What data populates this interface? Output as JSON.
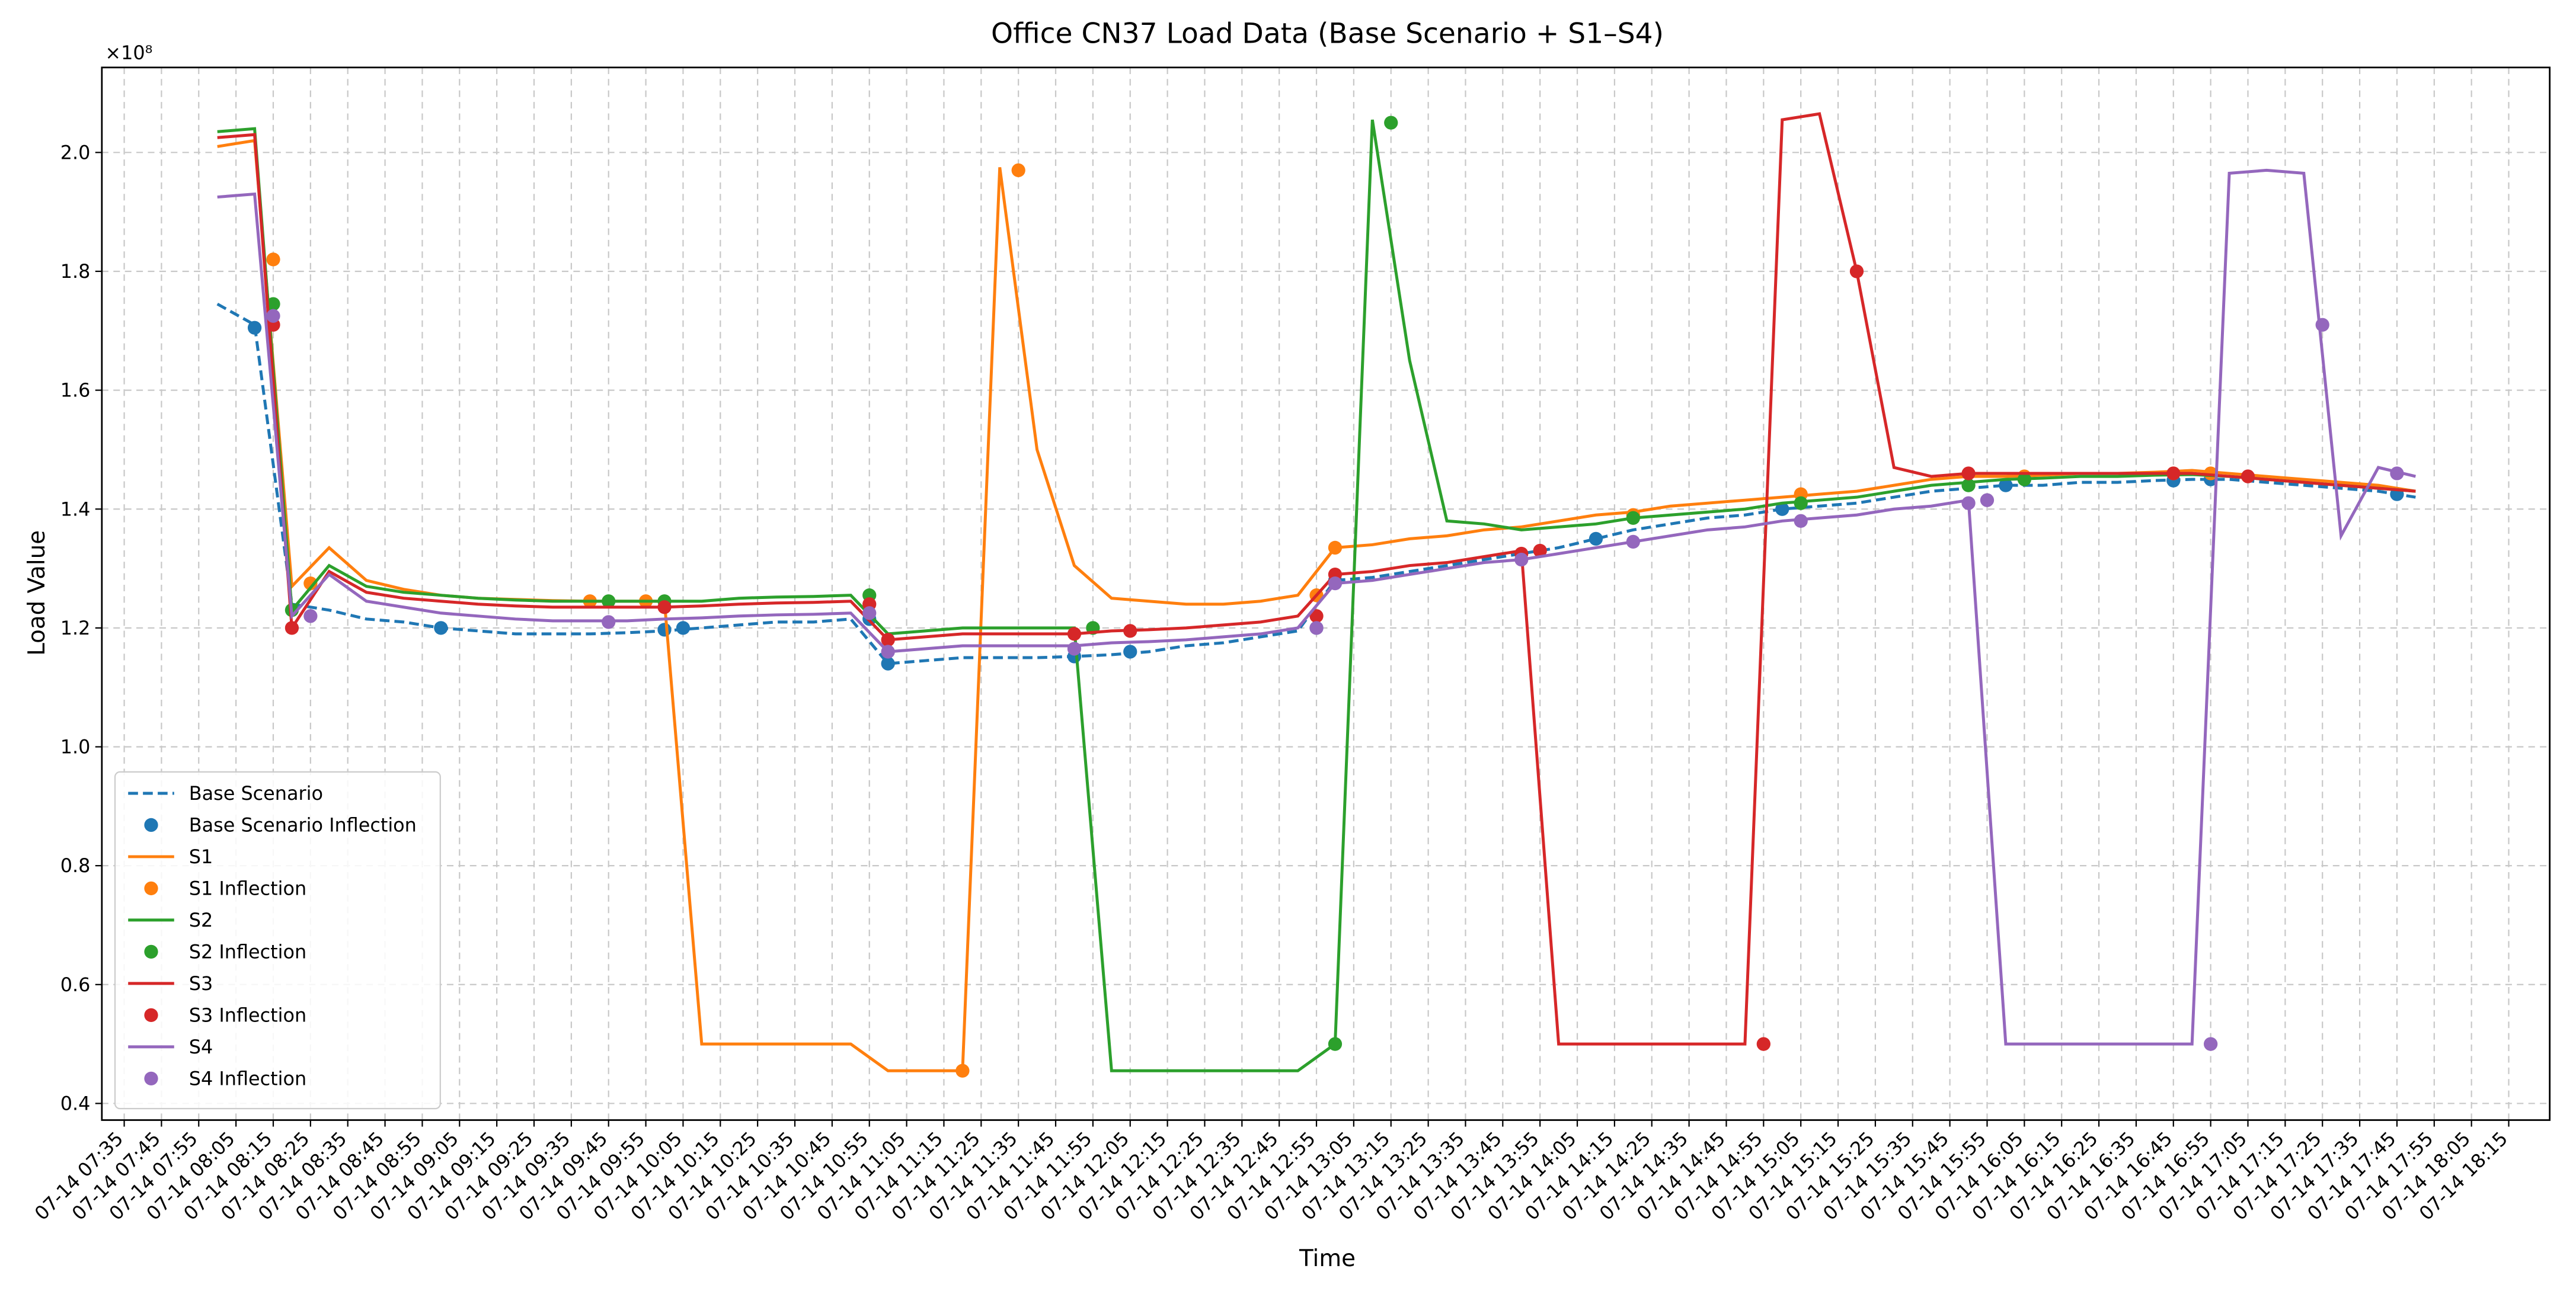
{
  "chart_data": {
    "type": "line",
    "title": "Office CN37 Load Data (Base Scenario + S1–S4)",
    "x_label": "Time",
    "y_label": "Load Value",
    "y_offset_label": "×10⁸",
    "grid": true,
    "legend": "lower left",
    "xlim": [
      "07-14 07:29",
      "07-14 18:26"
    ],
    "ylim": [
      0.372,
      2.143
    ],
    "yticks": [
      0.4,
      0.6,
      0.8,
      {
        "value": 1,
        "label": "1.0"
      },
      1.2,
      1.4,
      1.6,
      1.8,
      {
        "value": 2,
        "label": "2.0"
      }
    ],
    "xticks": [
      "07-14 07:35",
      "07-14 07:45",
      "07-14 07:55",
      "07-14 08:05",
      "07-14 08:15",
      "07-14 08:25",
      "07-14 08:35",
      "07-14 08:45",
      "07-14 08:55",
      "07-14 09:05",
      "07-14 09:15",
      "07-14 09:25",
      "07-14 09:35",
      "07-14 09:45",
      "07-14 09:55",
      "07-14 10:05",
      "07-14 10:15",
      "07-14 10:25",
      "07-14 10:35",
      "07-14 10:45",
      "07-14 10:55",
      "07-14 11:05",
      "07-14 11:15",
      "07-14 11:25",
      "07-14 11:35",
      "07-14 11:45",
      "07-14 11:55",
      "07-14 12:05",
      "07-14 12:15",
      "07-14 12:25",
      "07-14 12:35",
      "07-14 12:45",
      "07-14 12:55",
      "07-14 13:05",
      "07-14 13:15",
      "07-14 13:25",
      "07-14 13:35",
      "07-14 13:45",
      "07-14 13:55",
      "07-14 14:05",
      "07-14 14:15",
      "07-14 14:25",
      "07-14 14:35",
      "07-14 14:45",
      "07-14 14:55",
      "07-14 15:05",
      "07-14 15:15",
      "07-14 15:25",
      "07-14 15:35",
      "07-14 15:45",
      "07-14 15:55",
      "07-14 16:05",
      "07-14 16:15",
      "07-14 16:25",
      "07-14 16:35",
      "07-14 16:45",
      "07-14 16:55",
      "07-14 17:05",
      "07-14 17:15",
      "07-14 17:25",
      "07-14 17:35",
      "07-14 17:45",
      "07-14 17:55",
      "07-14 18:05",
      "07-14 18:15"
    ],
    "x": [
      "07-14 08:00",
      "07-14 08:10",
      "07-14 08:20",
      "07-14 08:30",
      "07-14 08:40",
      "07-14 08:50",
      "07-14 09:00",
      "07-14 09:10",
      "07-14 09:20",
      "07-14 09:30",
      "07-14 09:40",
      "07-14 09:50",
      "07-14 10:00",
      "07-14 10:10",
      "07-14 10:20",
      "07-14 10:30",
      "07-14 10:40",
      "07-14 10:50",
      "07-14 11:00",
      "07-14 11:10",
      "07-14 11:20",
      "07-14 11:30",
      "07-14 11:40",
      "07-14 11:50",
      "07-14 12:00",
      "07-14 12:10",
      "07-14 12:20",
      "07-14 12:30",
      "07-14 12:40",
      "07-14 12:50",
      "07-14 13:00",
      "07-14 13:10",
      "07-14 13:20",
      "07-14 13:30",
      "07-14 13:40",
      "07-14 13:50",
      "07-14 14:00",
      "07-14 14:10",
      "07-14 14:20",
      "07-14 14:30",
      "07-14 14:40",
      "07-14 14:50",
      "07-14 15:00",
      "07-14 15:10",
      "07-14 15:20",
      "07-14 15:30",
      "07-14 15:40",
      "07-14 15:50",
      "07-14 16:00",
      "07-14 16:10",
      "07-14 16:20",
      "07-14 16:30",
      "07-14 16:40",
      "07-14 16:50",
      "07-14 17:00",
      "07-14 17:10",
      "07-14 17:20",
      "07-14 17:30",
      "07-14 17:40",
      "07-14 17:50"
    ],
    "series": [
      {
        "name": "Base Scenario",
        "color": "#1f77b4",
        "style": "dashed",
        "values": [
          1.745,
          1.71,
          1.24,
          1.23,
          1.215,
          1.21,
          1.2,
          1.195,
          1.19,
          1.19,
          1.19,
          1.192,
          1.195,
          1.2,
          1.205,
          1.21,
          1.21,
          1.215,
          1.14,
          1.145,
          1.15,
          1.15,
          1.15,
          1.152,
          1.155,
          1.16,
          1.17,
          1.175,
          1.185,
          1.195,
          1.28,
          1.285,
          1.295,
          1.305,
          1.315,
          1.325,
          1.335,
          1.35,
          1.365,
          1.375,
          1.385,
          1.39,
          1.4,
          1.405,
          1.41,
          1.42,
          1.43,
          1.435,
          1.44,
          1.44,
          1.445,
          1.445,
          1.448,
          1.45,
          1.45,
          1.445,
          1.44,
          1.435,
          1.43,
          1.42
        ]
      },
      {
        "name": "Base Scenario Inflection",
        "color": "#1f77b4",
        "kind": "scatter",
        "x": [
          "07-14 08:10",
          "07-14 09:00",
          "07-14 10:00",
          "07-14 10:05",
          "07-14 10:55",
          "07-14 11:00",
          "07-14 11:50",
          "07-14 12:05",
          "07-14 12:55",
          "07-14 13:00",
          "07-14 14:10",
          "07-14 15:00",
          "07-14 16:00",
          "07-14 16:45",
          "07-14 16:55",
          "07-14 17:45"
        ],
        "values": [
          1.705,
          1.2,
          1.197,
          1.2,
          1.215,
          1.14,
          1.152,
          1.16,
          1.2,
          1.28,
          1.35,
          1.4,
          1.44,
          1.448,
          1.45,
          1.425
        ]
      },
      {
        "name": "S1",
        "color": "#ff7f0e",
        "style": "solid",
        "values": [
          2.01,
          2.02,
          1.27,
          1.335,
          1.28,
          1.265,
          1.255,
          1.25,
          1.248,
          1.246,
          1.245,
          1.245,
          1.245,
          0.5,
          0.5,
          0.5,
          0.5,
          0.5,
          0.455,
          0.455,
          0.455,
          1.975,
          1.5,
          1.305,
          1.25,
          1.245,
          1.24,
          1.24,
          1.245,
          1.255,
          1.335,
          1.34,
          1.35,
          1.355,
          1.365,
          1.37,
          1.38,
          1.39,
          1.395,
          1.405,
          1.41,
          1.415,
          1.42,
          1.425,
          1.43,
          1.44,
          1.45,
          1.455,
          1.455,
          1.457,
          1.46,
          1.46,
          1.462,
          1.465,
          1.46,
          1.455,
          1.45,
          1.445,
          1.44,
          1.43
        ]
      },
      {
        "name": "S1 Inflection",
        "color": "#ff7f0e",
        "kind": "scatter",
        "x": [
          "07-14 08:15",
          "07-14 08:25",
          "07-14 09:40",
          "07-14 09:55",
          "07-14 11:20",
          "07-14 11:35",
          "07-14 12:55",
          "07-14 13:00",
          "07-14 14:20",
          "07-14 15:05",
          "07-14 16:05",
          "07-14 16:45",
          "07-14 16:55"
        ],
        "values": [
          1.82,
          1.275,
          1.245,
          1.245,
          0.455,
          1.97,
          1.255,
          1.335,
          1.39,
          1.425,
          1.455,
          1.46,
          1.46
        ]
      },
      {
        "name": "S2",
        "color": "#2ca02c",
        "style": "solid",
        "values": [
          2.035,
          2.04,
          1.23,
          1.305,
          1.27,
          1.26,
          1.255,
          1.25,
          1.247,
          1.245,
          1.245,
          1.245,
          1.245,
          1.245,
          1.25,
          1.252,
          1.253,
          1.255,
          1.19,
          1.195,
          1.2,
          1.2,
          1.2,
          1.2,
          0.455,
          0.455,
          0.455,
          0.455,
          0.455,
          0.455,
          0.5,
          2.055,
          1.65,
          1.38,
          1.375,
          1.365,
          1.37,
          1.375,
          1.385,
          1.39,
          1.395,
          1.4,
          1.41,
          1.415,
          1.42,
          1.43,
          1.44,
          1.445,
          1.45,
          1.452,
          1.455,
          1.455,
          1.457,
          1.458,
          1.455,
          1.45,
          1.445,
          1.44,
          1.435,
          1.43
        ]
      },
      {
        "name": "S2 Inflection",
        "color": "#2ca02c",
        "kind": "scatter",
        "x": [
          "07-14 08:15",
          "07-14 08:20",
          "07-14 09:45",
          "07-14 10:00",
          "07-14 10:55",
          "07-14 11:55",
          "07-14 13:00",
          "07-14 13:15",
          "07-14 14:20",
          "07-14 15:05",
          "07-14 15:50",
          "07-14 16:05"
        ],
        "values": [
          1.745,
          1.23,
          1.245,
          1.245,
          1.255,
          1.2,
          0.5,
          2.05,
          1.385,
          1.41,
          1.44,
          1.45
        ]
      },
      {
        "name": "S3",
        "color": "#d62728",
        "style": "solid",
        "values": [
          2.025,
          2.03,
          1.2,
          1.295,
          1.26,
          1.25,
          1.245,
          1.24,
          1.237,
          1.235,
          1.235,
          1.235,
          1.235,
          1.237,
          1.24,
          1.242,
          1.243,
          1.245,
          1.18,
          1.185,
          1.19,
          1.19,
          1.19,
          1.19,
          1.195,
          1.197,
          1.2,
          1.205,
          1.21,
          1.22,
          1.29,
          1.295,
          1.305,
          1.31,
          1.32,
          1.33,
          0.5,
          0.5,
          0.5,
          0.5,
          0.5,
          0.5,
          2.055,
          2.065,
          1.8,
          1.47,
          1.455,
          1.46,
          1.46,
          1.46,
          1.46,
          1.46,
          1.46,
          1.46,
          1.455,
          1.45,
          1.445,
          1.44,
          1.435,
          1.43
        ]
      },
      {
        "name": "S3 Inflection",
        "color": "#d62728",
        "kind": "scatter",
        "x": [
          "07-14 08:15",
          "07-14 08:20",
          "07-14 10:00",
          "07-14 10:55",
          "07-14 11:00",
          "07-14 11:50",
          "07-14 12:05",
          "07-14 12:55",
          "07-14 13:00",
          "07-14 13:50",
          "07-14 13:55",
          "07-14 14:55",
          "07-14 15:20",
          "07-14 15:50",
          "07-14 16:45",
          "07-14 17:05"
        ],
        "values": [
          1.71,
          1.2,
          1.235,
          1.24,
          1.18,
          1.19,
          1.195,
          1.22,
          1.29,
          1.325,
          1.33,
          0.5,
          1.8,
          1.46,
          1.46,
          1.455
        ]
      },
      {
        "name": "S4",
        "color": "#9467bd",
        "style": "solid",
        "values": [
          1.925,
          1.93,
          1.22,
          1.29,
          1.245,
          1.235,
          1.225,
          1.22,
          1.215,
          1.212,
          1.212,
          1.212,
          1.215,
          1.217,
          1.22,
          1.222,
          1.223,
          1.225,
          1.16,
          1.165,
          1.17,
          1.17,
          1.17,
          1.17,
          1.175,
          1.177,
          1.18,
          1.185,
          1.19,
          1.2,
          1.275,
          1.28,
          1.29,
          1.3,
          1.31,
          1.315,
          1.325,
          1.335,
          1.345,
          1.355,
          1.365,
          1.37,
          1.38,
          1.385,
          1.39,
          1.4,
          1.405,
          1.415,
          0.5,
          0.5,
          0.5,
          0.5,
          0.5,
          0.5,
          1.965,
          1.97,
          1.965,
          1.355,
          1.47,
          1.455
        ]
      },
      {
        "name": "S4 Inflection",
        "color": "#9467bd",
        "kind": "scatter",
        "x": [
          "07-14 08:15",
          "07-14 08:25",
          "07-14 09:45",
          "07-14 10:55",
          "07-14 11:00",
          "07-14 11:50",
          "07-14 12:55",
          "07-14 13:00",
          "07-14 13:50",
          "07-14 14:20",
          "07-14 15:05",
          "07-14 15:50",
          "07-14 15:55",
          "07-14 16:55",
          "07-14 17:25",
          "07-14 17:45"
        ],
        "values": [
          1.725,
          1.22,
          1.21,
          1.225,
          1.16,
          1.165,
          1.2,
          1.275,
          1.315,
          1.345,
          1.38,
          1.41,
          1.415,
          0.5,
          1.71,
          1.46
        ]
      }
    ]
  }
}
